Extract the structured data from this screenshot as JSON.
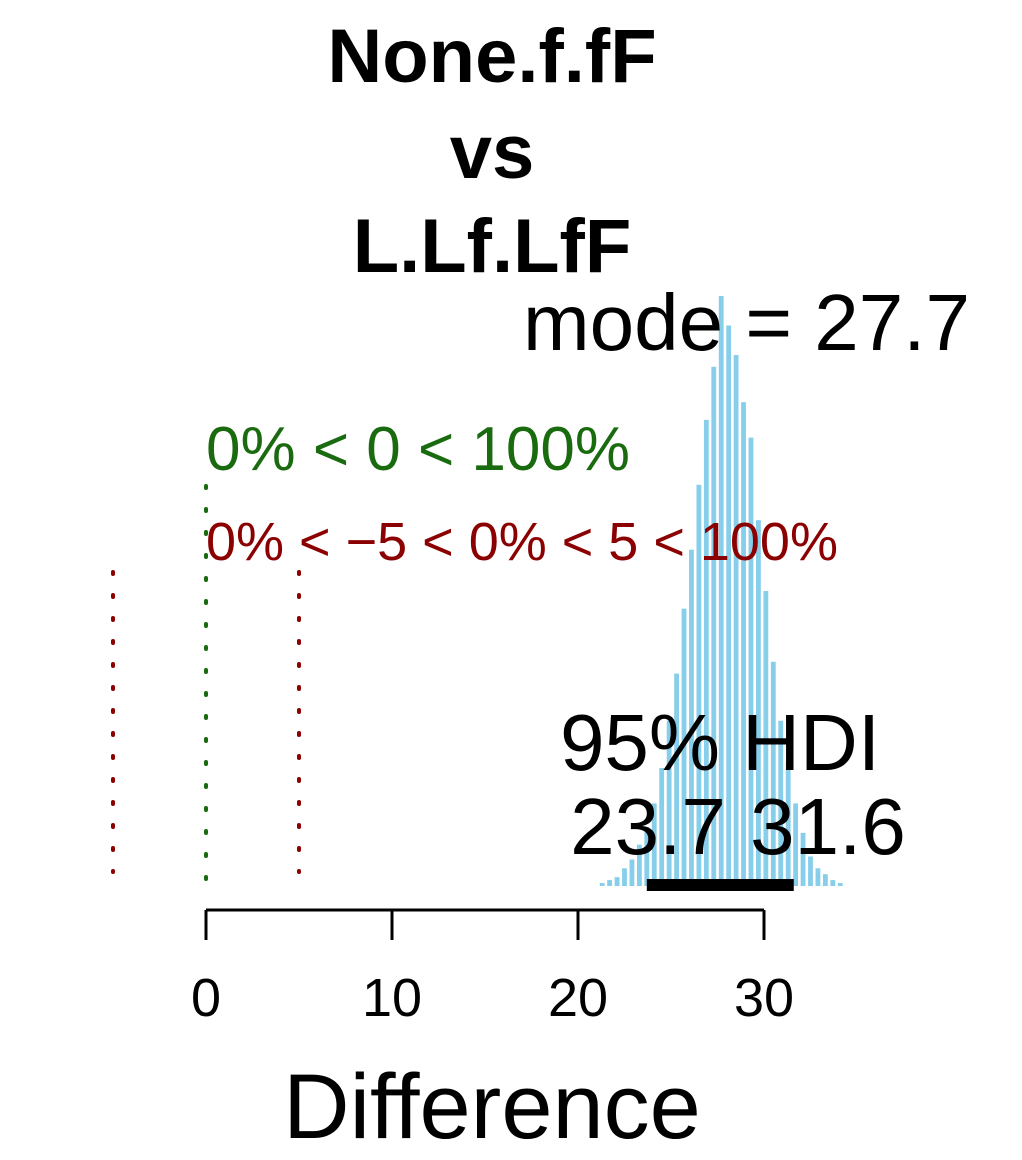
{
  "chart_data": {
    "type": "bar",
    "title_lines": [
      "None.f.fF",
      "vs",
      "L.Lf.LfF"
    ],
    "xlabel": "Difference",
    "xlim": [
      -5.5,
      35.5
    ],
    "x_ticks": [
      0,
      10,
      20,
      30
    ],
    "mode_label": "mode = 27.7",
    "mode": 27.7,
    "comparison_zero_label": "0% < 0 < 100%",
    "comparison_zero_value": 0,
    "rope_label": "0% < −5 < 0% < 5 < 100%",
    "rope": [
      -5,
      5
    ],
    "hdi_label": "95% HDI",
    "hdi_low_label": "23.7",
    "hdi_high_label": "31.6",
    "hdi": [
      23.7,
      31.6
    ],
    "histogram": {
      "bin_width": 0.42,
      "bins": [
        {
          "x": 21.3,
          "y": 0.005
        },
        {
          "x": 21.7,
          "y": 0.01
        },
        {
          "x": 22.1,
          "y": 0.015
        },
        {
          "x": 22.5,
          "y": 0.03
        },
        {
          "x": 22.9,
          "y": 0.045
        },
        {
          "x": 23.3,
          "y": 0.07
        },
        {
          "x": 23.7,
          "y": 0.1
        },
        {
          "x": 24.1,
          "y": 0.14
        },
        {
          "x": 24.5,
          "y": 0.2
        },
        {
          "x": 24.9,
          "y": 0.28
        },
        {
          "x": 25.3,
          "y": 0.36
        },
        {
          "x": 25.7,
          "y": 0.47
        },
        {
          "x": 26.1,
          "y": 0.57
        },
        {
          "x": 26.5,
          "y": 0.68
        },
        {
          "x": 26.9,
          "y": 0.79
        },
        {
          "x": 27.3,
          "y": 0.88
        },
        {
          "x": 27.7,
          "y": 1.0
        },
        {
          "x": 28.1,
          "y": 0.95
        },
        {
          "x": 28.5,
          "y": 0.9
        },
        {
          "x": 28.9,
          "y": 0.82
        },
        {
          "x": 29.3,
          "y": 0.76
        },
        {
          "x": 29.7,
          "y": 0.62
        },
        {
          "x": 30.1,
          "y": 0.5
        },
        {
          "x": 30.5,
          "y": 0.38
        },
        {
          "x": 30.9,
          "y": 0.28
        },
        {
          "x": 31.3,
          "y": 0.21
        },
        {
          "x": 31.7,
          "y": 0.14
        },
        {
          "x": 32.1,
          "y": 0.09
        },
        {
          "x": 32.5,
          "y": 0.05
        },
        {
          "x": 32.9,
          "y": 0.03
        },
        {
          "x": 33.3,
          "y": 0.02
        },
        {
          "x": 33.7,
          "y": 0.01
        },
        {
          "x": 34.1,
          "y": 0.005
        }
      ]
    },
    "colors": {
      "bars": "#87ceeb",
      "zero_line": "#1a6b0f",
      "rope_lines": "#8b0000",
      "hdi_bar": "#000000"
    }
  }
}
